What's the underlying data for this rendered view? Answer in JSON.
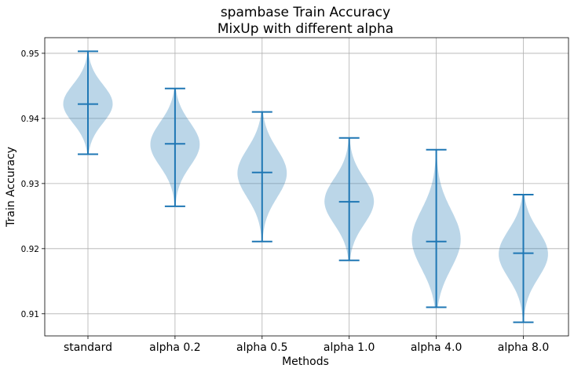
{
  "chart_data": {
    "type": "violin",
    "title_line1": "spambase Train Accuracy",
    "title_line2": "MixUp with different alpha",
    "xlabel": "Methods",
    "ylabel": "Train Accuracy",
    "categories": [
      "standard",
      "alpha 0.2",
      "alpha 0.5",
      "alpha 1.0",
      "alpha 4.0",
      "alpha 8.0"
    ],
    "yticks": [
      "0.91",
      "0.92",
      "0.93",
      "0.94",
      "0.95"
    ],
    "ylim": [
      0.9066,
      0.9524
    ],
    "grid": true,
    "violin_color": "#1f77b4",
    "series": [
      {
        "category": "standard",
        "min": 0.9345,
        "median": 0.9422,
        "max": 0.9503
      },
      {
        "category": "alpha 0.2",
        "min": 0.9265,
        "median": 0.9361,
        "max": 0.9446
      },
      {
        "category": "alpha 0.5",
        "min": 0.9211,
        "median": 0.9317,
        "max": 0.941
      },
      {
        "category": "alpha 1.0",
        "min": 0.9182,
        "median": 0.9272,
        "max": 0.937
      },
      {
        "category": "alpha 4.0",
        "min": 0.911,
        "median": 0.9211,
        "max": 0.9352
      },
      {
        "category": "alpha 8.0",
        "min": 0.9087,
        "median": 0.9193,
        "max": 0.9283
      }
    ]
  }
}
